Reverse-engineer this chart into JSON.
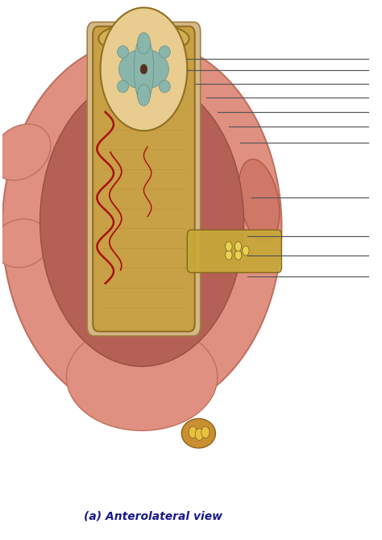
{
  "background_color": "#ffffff",
  "title": "(a) Anterolateral view",
  "title_fontsize": 10,
  "title_color": "#1a1a8c",
  "title_style": "italic",
  "fig_width": 4.74,
  "fig_height": 6.7,
  "blood_vessel_color": "#aa1010",
  "nerve_color": "#d4a020",
  "nerve_sheath_color": "#b89040",
  "line_color": "#555555"
}
